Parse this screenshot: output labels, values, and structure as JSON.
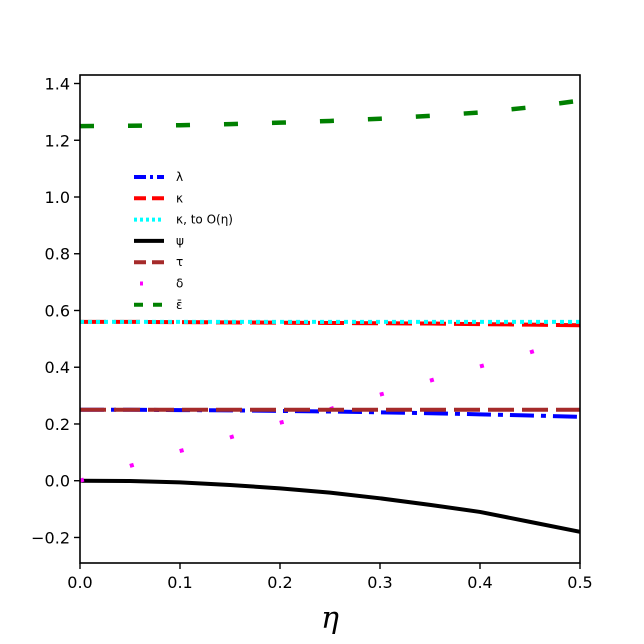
{
  "chart_data": {
    "type": "line",
    "title": "",
    "xlabel": "η",
    "ylabel": "",
    "xlim": [
      0.0,
      0.5
    ],
    "ylim": [
      -0.29,
      1.43
    ],
    "x_ticks": [
      0.0,
      0.1,
      0.2,
      0.3,
      0.4,
      0.5
    ],
    "x_tick_labels": [
      "0.0",
      "0.1",
      "0.2",
      "0.3",
      "0.4",
      "0.5"
    ],
    "y_ticks": [
      -0.2,
      0.0,
      0.2,
      0.4,
      0.6,
      0.8,
      1.0,
      1.2,
      1.4
    ],
    "y_tick_labels": [
      "−0.2",
      "0.0",
      "0.2",
      "0.4",
      "0.6",
      "0.8",
      "1.0",
      "1.2",
      "1.4"
    ],
    "grid": false,
    "legend_position": "center-left",
    "series": [
      {
        "name": "λ",
        "legend_label": "λ",
        "color": "#0000ff",
        "style": "dashdot",
        "x": [
          0.0,
          0.05,
          0.1,
          0.15,
          0.2,
          0.25,
          0.3,
          0.35,
          0.4,
          0.45,
          0.5
        ],
        "y": [
          0.25,
          0.25,
          0.249,
          0.248,
          0.246,
          0.244,
          0.241,
          0.238,
          0.234,
          0.23,
          0.225
        ]
      },
      {
        "name": "κ",
        "legend_label": "κ",
        "color": "#ff0000",
        "style": "dashed",
        "x": [
          0.0,
          0.05,
          0.1,
          0.15,
          0.2,
          0.25,
          0.3,
          0.35,
          0.4,
          0.45,
          0.5
        ],
        "y": [
          0.56,
          0.56,
          0.559,
          0.558,
          0.557,
          0.556,
          0.555,
          0.554,
          0.552,
          0.55,
          0.548
        ]
      },
      {
        "name": "κ, to O(η)",
        "legend_label": "κ, to O(η)",
        "color": "#00ffff",
        "style": "dotted",
        "x": [
          0.0,
          0.5
        ],
        "y": [
          0.56,
          0.56
        ]
      },
      {
        "name": "ψ",
        "legend_label": "ψ",
        "color": "#000000",
        "style": "solid",
        "x": [
          0.0,
          0.05,
          0.1,
          0.15,
          0.2,
          0.25,
          0.3,
          0.35,
          0.4,
          0.45,
          0.5
        ],
        "y": [
          0.0,
          -0.001,
          -0.006,
          -0.015,
          -0.027,
          -0.042,
          -0.062,
          -0.085,
          -0.11,
          -0.145,
          -0.18
        ]
      },
      {
        "name": "τ",
        "legend_label": "τ",
        "color": "#a52a2a",
        "style": "dashed",
        "x": [
          0.0,
          0.5
        ],
        "y": [
          0.25,
          0.25
        ]
      },
      {
        "name": "δ",
        "legend_label": "δ",
        "color": "#ff00ff",
        "style": "sparse-dots",
        "x": [
          0.0,
          0.048,
          0.095,
          0.143,
          0.19,
          0.238,
          0.286,
          0.333,
          0.381,
          0.429,
          0.476
        ],
        "y": [
          0.0,
          0.05,
          0.1,
          0.145,
          0.195,
          0.24,
          0.29,
          0.335,
          0.385,
          0.43,
          0.48
        ]
      },
      {
        "name": "ε̄",
        "legend_label": "ε̄",
        "color": "#008000",
        "style": "loose-dashed",
        "x": [
          0.0,
          0.05,
          0.1,
          0.15,
          0.2,
          0.25,
          0.3,
          0.35,
          0.4,
          0.45,
          0.5
        ],
        "y": [
          1.25,
          1.251,
          1.253,
          1.257,
          1.262,
          1.268,
          1.276,
          1.286,
          1.298,
          1.316,
          1.34
        ]
      }
    ]
  }
}
